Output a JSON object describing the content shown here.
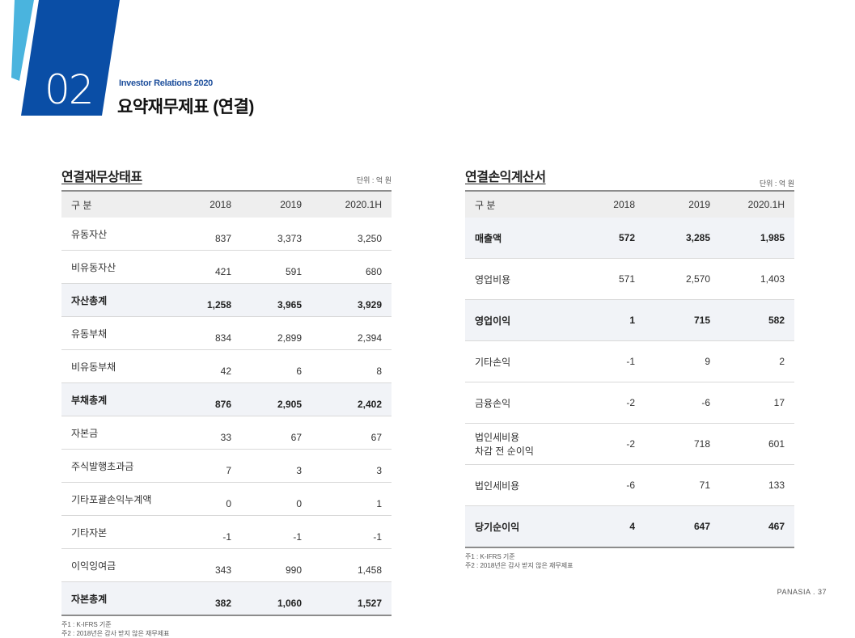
{
  "header": {
    "section_number": "02",
    "ir_label": "Investor Relations 2020",
    "title": "요약재무제표 (연결)",
    "colors": {
      "brand_blue": "#0a4ea6",
      "accent_light_blue": "#4ab4de"
    }
  },
  "balance_sheet": {
    "title": "연결재무상태표",
    "unit": "단위 : 억 원",
    "columns": [
      "구 분",
      "2018",
      "2019",
      "2020.1H"
    ],
    "rows": [
      {
        "label": "유동자산",
        "values": [
          "837",
          "3,373",
          "3,250"
        ],
        "bold": false
      },
      {
        "label": "비유동자산",
        "values": [
          "421",
          "591",
          "680"
        ],
        "bold": false
      },
      {
        "label": "자산총계",
        "values": [
          "1,258",
          "3,965",
          "3,929"
        ],
        "bold": true
      },
      {
        "label": "유동부채",
        "values": [
          "834",
          "2,899",
          "2,394"
        ],
        "bold": false
      },
      {
        "label": "비유동부채",
        "values": [
          "42",
          "6",
          "8"
        ],
        "bold": false
      },
      {
        "label": "부채총계",
        "values": [
          "876",
          "2,905",
          "2,402"
        ],
        "bold": true
      },
      {
        "label": "자본금",
        "values": [
          "33",
          "67",
          "67"
        ],
        "bold": false
      },
      {
        "label": "주식발행초과금",
        "values": [
          "7",
          "3",
          "3"
        ],
        "bold": false
      },
      {
        "label": "기타포괄손익누계액",
        "values": [
          "0",
          "0",
          "1"
        ],
        "bold": false
      },
      {
        "label": "기타자본",
        "values": [
          "-1",
          "-1",
          "-1"
        ],
        "bold": false
      },
      {
        "label": "이익잉여금",
        "values": [
          "343",
          "990",
          "1,458"
        ],
        "bold": false
      },
      {
        "label": "자본총계",
        "values": [
          "382",
          "1,060",
          "1,527"
        ],
        "bold": true
      }
    ],
    "notes": [
      "주1 : K-IFRS 기준",
      "주2 : 2018년은 감사 받지 않은 재무제표"
    ]
  },
  "income_statement": {
    "title": "연결손익계산서",
    "unit": "단위 : 억 원",
    "columns": [
      "구 분",
      "2018",
      "2019",
      "2020.1H"
    ],
    "rows": [
      {
        "label": "매출액",
        "values": [
          "572",
          "3,285",
          "1,985"
        ],
        "bold": true
      },
      {
        "label": "영업비용",
        "values": [
          "571",
          "2,570",
          "1,403"
        ],
        "bold": false
      },
      {
        "label": "영업이익",
        "values": [
          "1",
          "715",
          "582"
        ],
        "bold": true
      },
      {
        "label": "기타손익",
        "values": [
          "-1",
          "9",
          "2"
        ],
        "bold": false
      },
      {
        "label": "금융손익",
        "values": [
          "-2",
          "-6",
          "17"
        ],
        "bold": false
      },
      {
        "label": "법인세비용\n차감 전 순이익",
        "values": [
          "-2",
          "718",
          "601"
        ],
        "bold": false
      },
      {
        "label": "법인세비용",
        "values": [
          "-6",
          "71",
          "133"
        ],
        "bold": false
      },
      {
        "label": "당기순이익",
        "values": [
          "4",
          "647",
          "467"
        ],
        "bold": true
      }
    ],
    "notes": [
      "주1 : K-IFRS 기준",
      "주2 : 2018년은 감사 받지 않은 재무제표"
    ]
  },
  "footer": {
    "page_label": "PANASIA . 37"
  }
}
